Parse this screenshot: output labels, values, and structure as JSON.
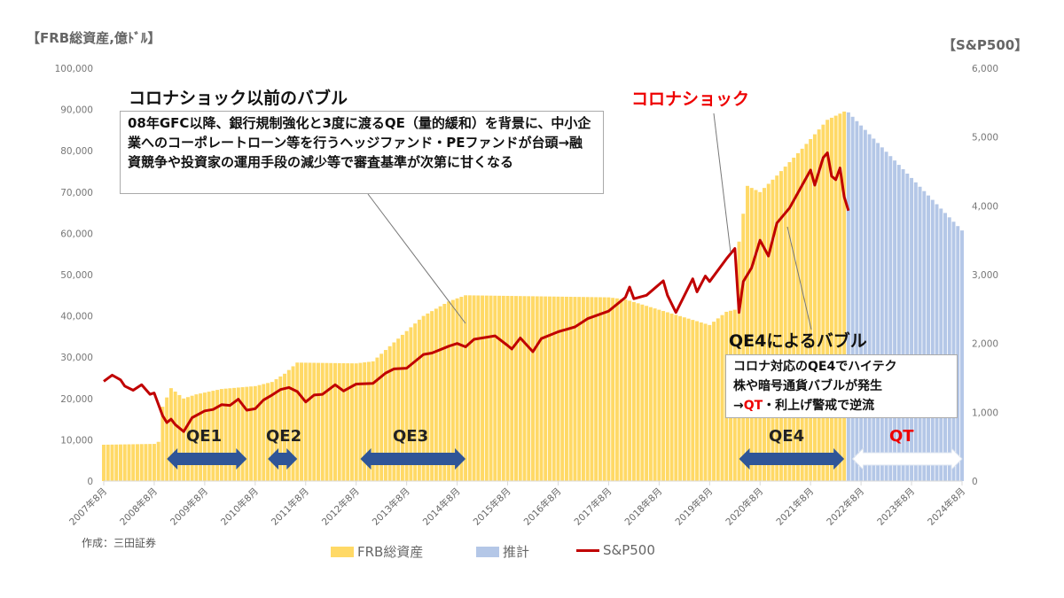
{
  "chart_data": {
    "type": "bar+line",
    "left_axis_label": "【FRB総資産,億ﾄﾞﾙ】",
    "right_axis_label": "【S&P500】",
    "left_ylim": [
      0,
      100000
    ],
    "right_ylim": [
      0,
      6000
    ],
    "left_ticks": [
      "0",
      "10,000",
      "20,000",
      "30,000",
      "40,000",
      "50,000",
      "60,000",
      "70,000",
      "80,000",
      "90,000",
      "100,000"
    ],
    "right_ticks": [
      "0",
      "1,000",
      "2,000",
      "3,000",
      "4,000",
      "5,000",
      "6,000"
    ],
    "x_ticks": [
      "2007年8月",
      "2008年8月",
      "2009年8月",
      "2010年8月",
      "2011年8月",
      "2012年8月",
      "2013年8月",
      "2014年8月",
      "2015年8月",
      "2016年8月",
      "2017年8月",
      "2018年8月",
      "2019年8月",
      "2020年8月",
      "2021年8月",
      "2022年8月",
      "2023年8月",
      "2024年8月"
    ],
    "xlim": [
      "2007-08",
      "2024-08"
    ],
    "grid": false,
    "legend_position": "bottom",
    "colors": {
      "frb": "#ffd966",
      "estimate": "#b4c7e7",
      "sp500": "#c00000",
      "qe_arrow": "#2f5597"
    },
    "series": [
      {
        "name": "FRB総資産",
        "type": "bar",
        "axis": "left",
        "points": [
          [
            "2007-08",
            8800
          ],
          [
            "2008-08",
            9000
          ],
          [
            "2008-09",
            9500
          ],
          [
            "2008-10",
            18000
          ],
          [
            "2008-12",
            22500
          ],
          [
            "2009-03",
            20000
          ],
          [
            "2009-06",
            21000
          ],
          [
            "2009-12",
            22300
          ],
          [
            "2010-08",
            23000
          ],
          [
            "2010-12",
            24000
          ],
          [
            "2011-03",
            26000
          ],
          [
            "2011-06",
            28700
          ],
          [
            "2012-08",
            28500
          ],
          [
            "2012-12",
            29000
          ],
          [
            "2013-06",
            34500
          ],
          [
            "2013-12",
            40000
          ],
          [
            "2014-06",
            43500
          ],
          [
            "2014-10",
            45000
          ],
          [
            "2017-08",
            44500
          ],
          [
            "2017-12",
            44000
          ],
          [
            "2018-08",
            41500
          ],
          [
            "2019-08",
            37800
          ],
          [
            "2019-12",
            41000
          ],
          [
            "2020-02",
            41500
          ],
          [
            "2020-03",
            58000
          ],
          [
            "2020-05",
            71500
          ],
          [
            "2020-08",
            70000
          ],
          [
            "2020-12",
            74000
          ],
          [
            "2021-06",
            80500
          ],
          [
            "2021-12",
            87500
          ],
          [
            "2022-04",
            89500
          ]
        ]
      },
      {
        "name": "推計",
        "type": "bar",
        "axis": "left",
        "points": [
          [
            "2022-05",
            89300
          ],
          [
            "2024-08",
            60700
          ]
        ]
      },
      {
        "name": "S&P500",
        "type": "line",
        "axis": "right",
        "points": [
          [
            "2007-08",
            1450
          ],
          [
            "2007-10",
            1540
          ],
          [
            "2007-12",
            1470
          ],
          [
            "2008-01",
            1380
          ],
          [
            "2008-03",
            1320
          ],
          [
            "2008-05",
            1400
          ],
          [
            "2008-07",
            1260
          ],
          [
            "2008-08",
            1280
          ],
          [
            "2008-10",
            950
          ],
          [
            "2008-11",
            850
          ],
          [
            "2008-12",
            900
          ],
          [
            "2009-01",
            820
          ],
          [
            "2009-03",
            720
          ],
          [
            "2009-05",
            920
          ],
          [
            "2009-08",
            1020
          ],
          [
            "2009-10",
            1040
          ],
          [
            "2009-12",
            1110
          ],
          [
            "2010-02",
            1100
          ],
          [
            "2010-04",
            1190
          ],
          [
            "2010-06",
            1030
          ],
          [
            "2010-08",
            1050
          ],
          [
            "2010-10",
            1180
          ],
          [
            "2010-12",
            1250
          ],
          [
            "2011-02",
            1330
          ],
          [
            "2011-04",
            1360
          ],
          [
            "2011-06",
            1300
          ],
          [
            "2011-08",
            1150
          ],
          [
            "2011-10",
            1250
          ],
          [
            "2011-12",
            1260
          ],
          [
            "2012-03",
            1400
          ],
          [
            "2012-05",
            1310
          ],
          [
            "2012-08",
            1410
          ],
          [
            "2012-12",
            1420
          ],
          [
            "2013-03",
            1570
          ],
          [
            "2013-05",
            1630
          ],
          [
            "2013-08",
            1640
          ],
          [
            "2013-12",
            1840
          ],
          [
            "2014-02",
            1860
          ],
          [
            "2014-06",
            1960
          ],
          [
            "2014-08",
            2000
          ],
          [
            "2014-10",
            1950
          ],
          [
            "2014-12",
            2060
          ],
          [
            "2015-05",
            2110
          ],
          [
            "2015-08",
            1970
          ],
          [
            "2015-09",
            1920
          ],
          [
            "2015-11",
            2080
          ],
          [
            "2016-02",
            1880
          ],
          [
            "2016-04",
            2070
          ],
          [
            "2016-08",
            2170
          ],
          [
            "2016-12",
            2240
          ],
          [
            "2017-03",
            2360
          ],
          [
            "2017-08",
            2470
          ],
          [
            "2017-12",
            2670
          ],
          [
            "2018-01",
            2820
          ],
          [
            "2018-02",
            2650
          ],
          [
            "2018-05",
            2700
          ],
          [
            "2018-09",
            2910
          ],
          [
            "2018-10",
            2700
          ],
          [
            "2018-12",
            2450
          ],
          [
            "2019-04",
            2940
          ],
          [
            "2019-05",
            2750
          ],
          [
            "2019-07",
            2980
          ],
          [
            "2019-08",
            2900
          ],
          [
            "2019-12",
            3230
          ],
          [
            "2020-02",
            3380
          ],
          [
            "2020-03",
            2450
          ],
          [
            "2020-04",
            2900
          ],
          [
            "2020-06",
            3100
          ],
          [
            "2020-08",
            3500
          ],
          [
            "2020-10",
            3270
          ],
          [
            "2020-12",
            3750
          ],
          [
            "2021-03",
            3970
          ],
          [
            "2021-06",
            4300
          ],
          [
            "2021-08",
            4520
          ],
          [
            "2021-09",
            4300
          ],
          [
            "2021-11",
            4700
          ],
          [
            "2021-12",
            4770
          ],
          [
            "2022-01",
            4430
          ],
          [
            "2022-02",
            4380
          ],
          [
            "2022-03",
            4550
          ],
          [
            "2022-04",
            4130
          ],
          [
            "2022-05",
            3930
          ]
        ]
      }
    ],
    "periods": [
      {
        "label": "QE1",
        "start": "2008-11",
        "end": "2010-06"
      },
      {
        "label": "QE2",
        "start": "2010-11",
        "end": "2011-06"
      },
      {
        "label": "QE3",
        "start": "2012-09",
        "end": "2014-10"
      },
      {
        "label": "QE4",
        "start": "2020-03",
        "end": "2022-04"
      },
      {
        "label": "QT",
        "start": "2022-06",
        "end": "2024-08"
      }
    ],
    "annotations": {
      "pre_covid_title": "コロナショック以前のバブル",
      "pre_covid_text": "08年GFC以降、銀行規制強化と3度に渡るQE（量的緩和）を背景に、中小企業へのコーポレートローン等を行うヘッジファンド・PEファンドが台頭→融資競争や投資家の運用手段の減少等で審査基準が次第に甘くなる",
      "covid_shock": "コロナショック",
      "qe4_title": "QE4によるバブル",
      "qe4_line1": "コロナ対応のQE4でハイテク",
      "qe4_line2": "株や暗号通貨バブルが発生",
      "qe4_line3_prefix": "→",
      "qe4_line3_red": "QT",
      "qe4_line3_suffix": "・利上げ警戒で逆流"
    },
    "credit": "作成：三田証券",
    "legend": [
      "FRB総資産",
      "推計",
      "S&P500"
    ]
  }
}
